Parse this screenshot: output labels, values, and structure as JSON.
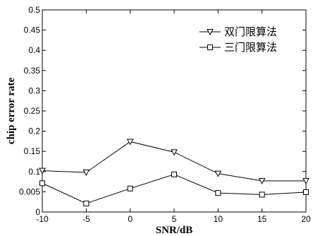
{
  "chart_data": {
    "type": "line",
    "xlabel": "SNR/dB",
    "ylabel": "chip error rate",
    "x": [
      -10,
      -5,
      0,
      5,
      10,
      15,
      20
    ],
    "xlim": [
      -10,
      20
    ],
    "ylim": [
      0,
      0.5
    ],
    "x_ticks": [
      "-10",
      "-5",
      "0",
      "5",
      "10",
      "15",
      "20"
    ],
    "y_ticks": [
      "0",
      "0.005",
      "0.1",
      "0.15",
      "0.2",
      "0.25",
      "0.3",
      "0.35",
      "0.4",
      "0.45",
      "0.5"
    ],
    "grid": false,
    "legend_position": "top-right",
    "series": [
      {
        "name": "双门限算法",
        "marker": "triangle-down",
        "values": [
          0.102,
          0.098,
          0.174,
          0.148,
          0.095,
          0.077,
          0.077
        ]
      },
      {
        "name": "三门限算法",
        "marker": "square",
        "values": [
          0.071,
          0.021,
          0.058,
          0.093,
          0.047,
          0.043,
          0.049
        ]
      }
    ]
  }
}
